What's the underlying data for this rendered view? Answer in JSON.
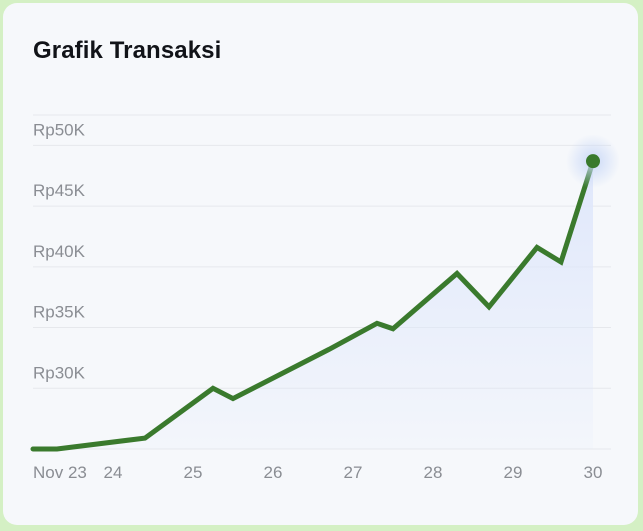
{
  "card": {
    "title": "Grafik Transaksi"
  },
  "colors": {
    "line": "#3a7a2d",
    "area_top": "#dfe7fb",
    "grid": "#e6e8ec",
    "tick_text": "#8a8d93",
    "glow": "#c9d8f7"
  },
  "chart_data": {
    "type": "area",
    "title": "Grafik Transaksi",
    "xlabel": "",
    "ylabel": "",
    "x_tick_labels": [
      "Nov 23",
      "24",
      "25",
      "26",
      "27",
      "28",
      "29",
      "30"
    ],
    "y_tick_labels": [
      "Rp30K",
      "Rp35K",
      "Rp40K",
      "Rp45K",
      "Rp50K"
    ],
    "y_ticks": [
      30000,
      35000,
      40000,
      45000,
      50000
    ],
    "xlim": [
      23,
      30
    ],
    "ylim": [
      25000,
      52500
    ],
    "grid": true,
    "series": [
      {
        "points": [
          [
            23.0,
            25000
          ],
          [
            23.3,
            25000
          ],
          [
            24.4,
            25900
          ],
          [
            25.25,
            30000
          ],
          [
            25.5,
            29150
          ],
          [
            26.7,
            33200
          ],
          [
            27.3,
            35350
          ],
          [
            27.5,
            34900
          ],
          [
            28.3,
            39450
          ],
          [
            28.7,
            36700
          ],
          [
            29.3,
            41600
          ],
          [
            29.6,
            40400
          ],
          [
            30.0,
            48700
          ]
        ]
      }
    ]
  }
}
